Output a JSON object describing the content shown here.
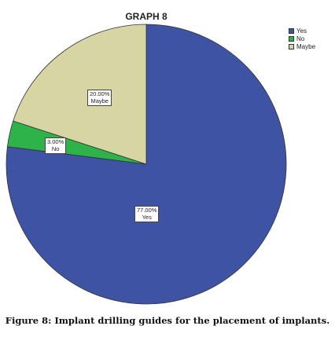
{
  "chart_data": {
    "type": "pie",
    "title": "GRAPH 8",
    "slices": [
      {
        "label": "Yes",
        "value": 77.0,
        "display": "77.00%",
        "color": "#3e53a4"
      },
      {
        "label": "No",
        "value": 3.0,
        "display": "3.00%",
        "color": "#2db34a"
      },
      {
        "label": "Maybe",
        "value": 20.0,
        "display": "20.00%",
        "color": "#d8d5a4"
      }
    ],
    "start_angle_deg": 0,
    "direction": "clockwise",
    "legend_position": "top-right"
  },
  "caption": "Figure 8: Implant drilling guides for the placement of implants."
}
